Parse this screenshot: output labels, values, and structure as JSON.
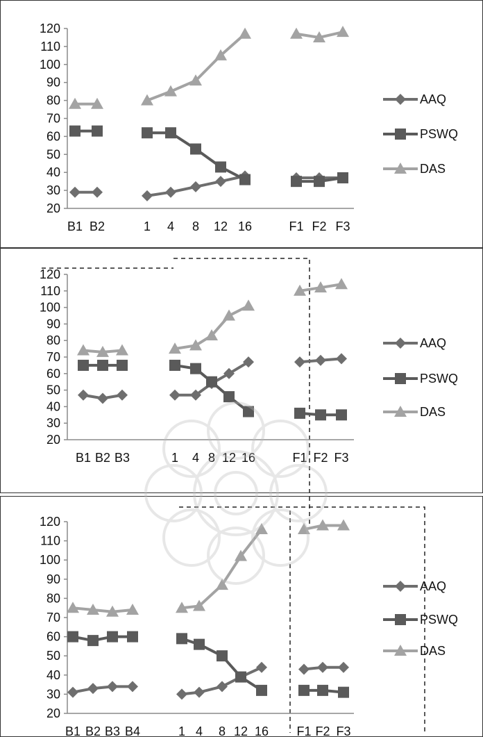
{
  "chart_data": [
    {
      "type": "line",
      "categories": [
        "B1",
        "B2",
        "1",
        "4",
        "8",
        "12",
        "16",
        "F1",
        "F2",
        "F3"
      ],
      "ylim": [
        20,
        120
      ],
      "yticks": [
        20,
        30,
        40,
        50,
        60,
        70,
        80,
        90,
        100,
        110,
        120
      ],
      "legend_position": "right",
      "grid": false,
      "series": [
        {
          "name": "AAQ",
          "values": [
            29,
            29,
            27,
            29,
            32,
            35,
            38,
            37,
            37,
            37
          ]
        },
        {
          "name": "PSWQ",
          "values": [
            63,
            63,
            62,
            62,
            53,
            43,
            36,
            35,
            35,
            37
          ]
        },
        {
          "name": "DAS",
          "values": [
            78,
            78,
            80,
            85,
            91,
            105,
            117,
            117,
            115,
            118
          ]
        }
      ]
    },
    {
      "type": "line",
      "categories": [
        "B1",
        "B2",
        "B3",
        "1",
        "4",
        "8",
        "12",
        "16",
        "F1",
        "F2",
        "F3"
      ],
      "ylim": [
        20,
        120
      ],
      "yticks": [
        20,
        30,
        40,
        50,
        60,
        70,
        80,
        90,
        100,
        110,
        120
      ],
      "legend_position": "right",
      "grid": false,
      "series": [
        {
          "name": "AAQ",
          "values": [
            47,
            45,
            47,
            47,
            47,
            54,
            60,
            67,
            67,
            68,
            69
          ]
        },
        {
          "name": "PSWQ",
          "values": [
            65,
            65,
            65,
            65,
            63,
            55,
            46,
            37,
            36,
            35,
            35
          ]
        },
        {
          "name": "DAS",
          "values": [
            74,
            73,
            74,
            75,
            77,
            83,
            95,
            101,
            110,
            112,
            114
          ]
        }
      ]
    },
    {
      "type": "line",
      "categories": [
        "B1",
        "B2",
        "B3",
        "B4",
        "1",
        "4",
        "8",
        "12",
        "16",
        "F1",
        "F2",
        "F3"
      ],
      "ylim": [
        20,
        120
      ],
      "yticks": [
        20,
        30,
        40,
        50,
        60,
        70,
        80,
        90,
        100,
        110,
        120
      ],
      "legend_position": "right",
      "grid": false,
      "series": [
        {
          "name": "AAQ",
          "values": [
            31,
            33,
            34,
            34,
            30,
            31,
            34,
            39,
            44,
            43,
            44,
            44
          ]
        },
        {
          "name": "PSWQ",
          "values": [
            60,
            58,
            60,
            60,
            59,
            56,
            50,
            39,
            32,
            32,
            32,
            31
          ]
        },
        {
          "name": "DAS",
          "values": [
            75,
            74,
            73,
            74,
            75,
            76,
            87,
            102,
            116,
            116,
            118,
            118
          ]
        }
      ]
    }
  ],
  "colors": {
    "AAQ": "#6e6e6e",
    "PSWQ": "#5a5a5a",
    "DAS": "#a3a3a3",
    "axis": "#8a8a8a",
    "text": "#111111"
  }
}
